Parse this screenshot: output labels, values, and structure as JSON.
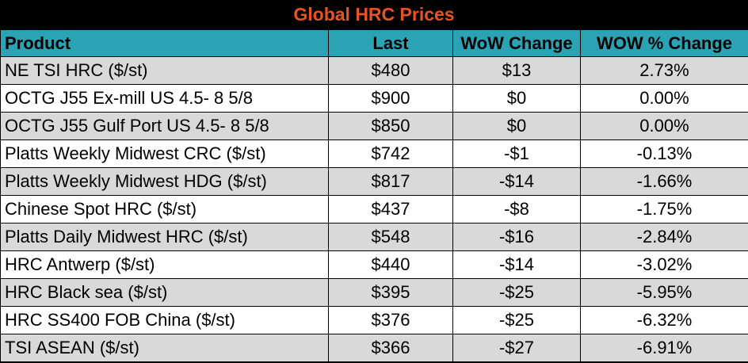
{
  "title": "Global HRC Prices",
  "headers": [
    "Product",
    "Last",
    "WoW Change",
    "WOW % Change"
  ],
  "rows": [
    [
      "NE TSI HRC ($/st)",
      "$480",
      "$13",
      "2.73%"
    ],
    [
      "OCTG J55 Ex-mill US 4.5- 8 5/8",
      "$900",
      "$0",
      "0.00%"
    ],
    [
      "OCTG J55 Gulf Port US 4.5- 8 5/8",
      "$850",
      "$0",
      "0.00%"
    ],
    [
      "Platts Weekly Midwest CRC ($/st)",
      "$742",
      "-$1",
      "-0.13%"
    ],
    [
      "Platts Weekly Midwest HDG ($/st)",
      "$817",
      "-$14",
      "-1.66%"
    ],
    [
      "Chinese Spot HRC ($/st)",
      "$437",
      "-$8",
      "-1.75%"
    ],
    [
      "Platts Daily Midwest HRC ($/st)",
      "$548",
      "-$16",
      "-2.84%"
    ],
    [
      "HRC Antwerp ($/st)",
      "$440",
      "-$14",
      "-3.02%"
    ],
    [
      "HRC Black sea ($/st)",
      "$395",
      "-$25",
      "-5.95%"
    ],
    [
      "HRC SS400 FOB China ($/st)",
      "$376",
      "-$25",
      "-6.32%"
    ],
    [
      "TSI ASEAN ($/st)",
      "$366",
      "-$27",
      "-6.91%"
    ]
  ],
  "colors": {
    "title": "#e8541e",
    "header_bg": "#2aa3b4",
    "stripe": "#d9d9d9"
  }
}
